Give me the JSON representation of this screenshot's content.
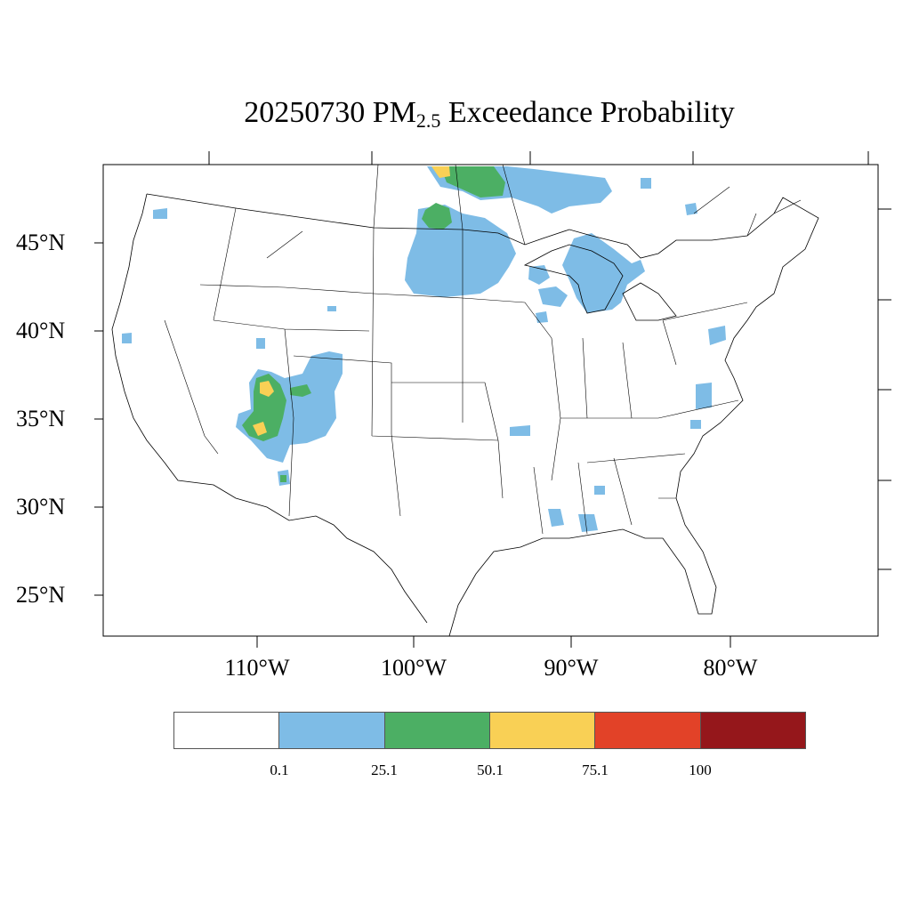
{
  "title": {
    "date": "20250730",
    "pollutant": "PM",
    "subscript": "2.5",
    "suffix": "Exceedance Probability"
  },
  "map": {
    "region": "Continental United States",
    "projection": "Lambert Conformal",
    "lat_labels": [
      "45°N",
      "40°N",
      "35°N",
      "30°N",
      "25°N"
    ],
    "lon_labels": [
      "110°W",
      "100°W",
      "90°W",
      "80°W"
    ]
  },
  "legend": {
    "colors": [
      "#ffffff",
      "#7ebce6",
      "#4caf64",
      "#f9d055",
      "#e24228",
      "#95171b"
    ],
    "labels": [
      "0.1",
      "25.1",
      "50.1",
      "75.1",
      "100"
    ]
  },
  "probability_areas": [
    {
      "region": "Minnesota / Dakotas / Manitoba",
      "class": "0.1-25.1"
    },
    {
      "region": "Manitoba border",
      "class": "25.1-50.1"
    },
    {
      "region": "Manitoba border",
      "class": "50.1-75.1"
    },
    {
      "region": "Upper Great Lakes / Ontario",
      "class": "0.1-25.1"
    },
    {
      "region": "Colorado / Utah / Arizona / New Mexico",
      "class": "0.1-25.1"
    },
    {
      "region": "Four Corners",
      "class": "25.1-50.1"
    },
    {
      "region": "Four Corners",
      "class": "50.1-75.1"
    },
    {
      "region": "Southeast scattered",
      "class": "0.1-25.1"
    },
    {
      "region": "Pennsylvania / Virginia",
      "class": "0.1-25.1"
    }
  ]
}
